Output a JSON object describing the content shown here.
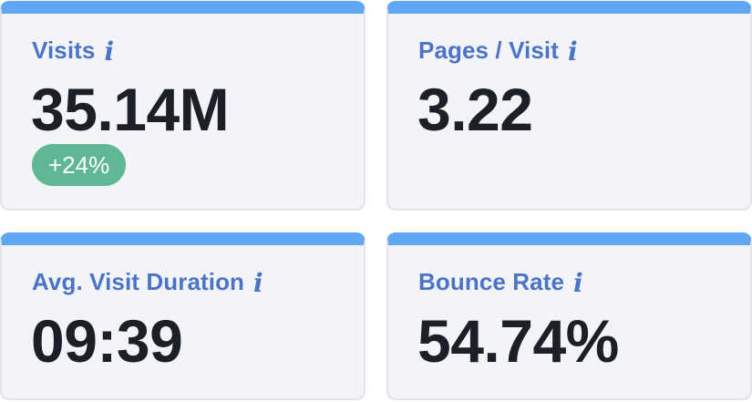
{
  "info_icon_glyph": "i",
  "colors": {
    "accent_bar": "#5fa7f2",
    "label": "#4c74c6",
    "value": "#1c1f27",
    "badge_positive": "#5fb893",
    "card_bg": "#f3f4f8"
  },
  "cards": [
    {
      "label": "Visits",
      "value": "35.14M",
      "badge": "+24%",
      "icon": "info-icon"
    },
    {
      "label": "Pages / Visit",
      "value": "3.22",
      "icon": "info-icon"
    },
    {
      "label": "Avg. Visit Duration",
      "value": "09:39",
      "icon": "info-icon"
    },
    {
      "label": "Bounce Rate",
      "value": "54.74%",
      "icon": "info-icon"
    }
  ]
}
